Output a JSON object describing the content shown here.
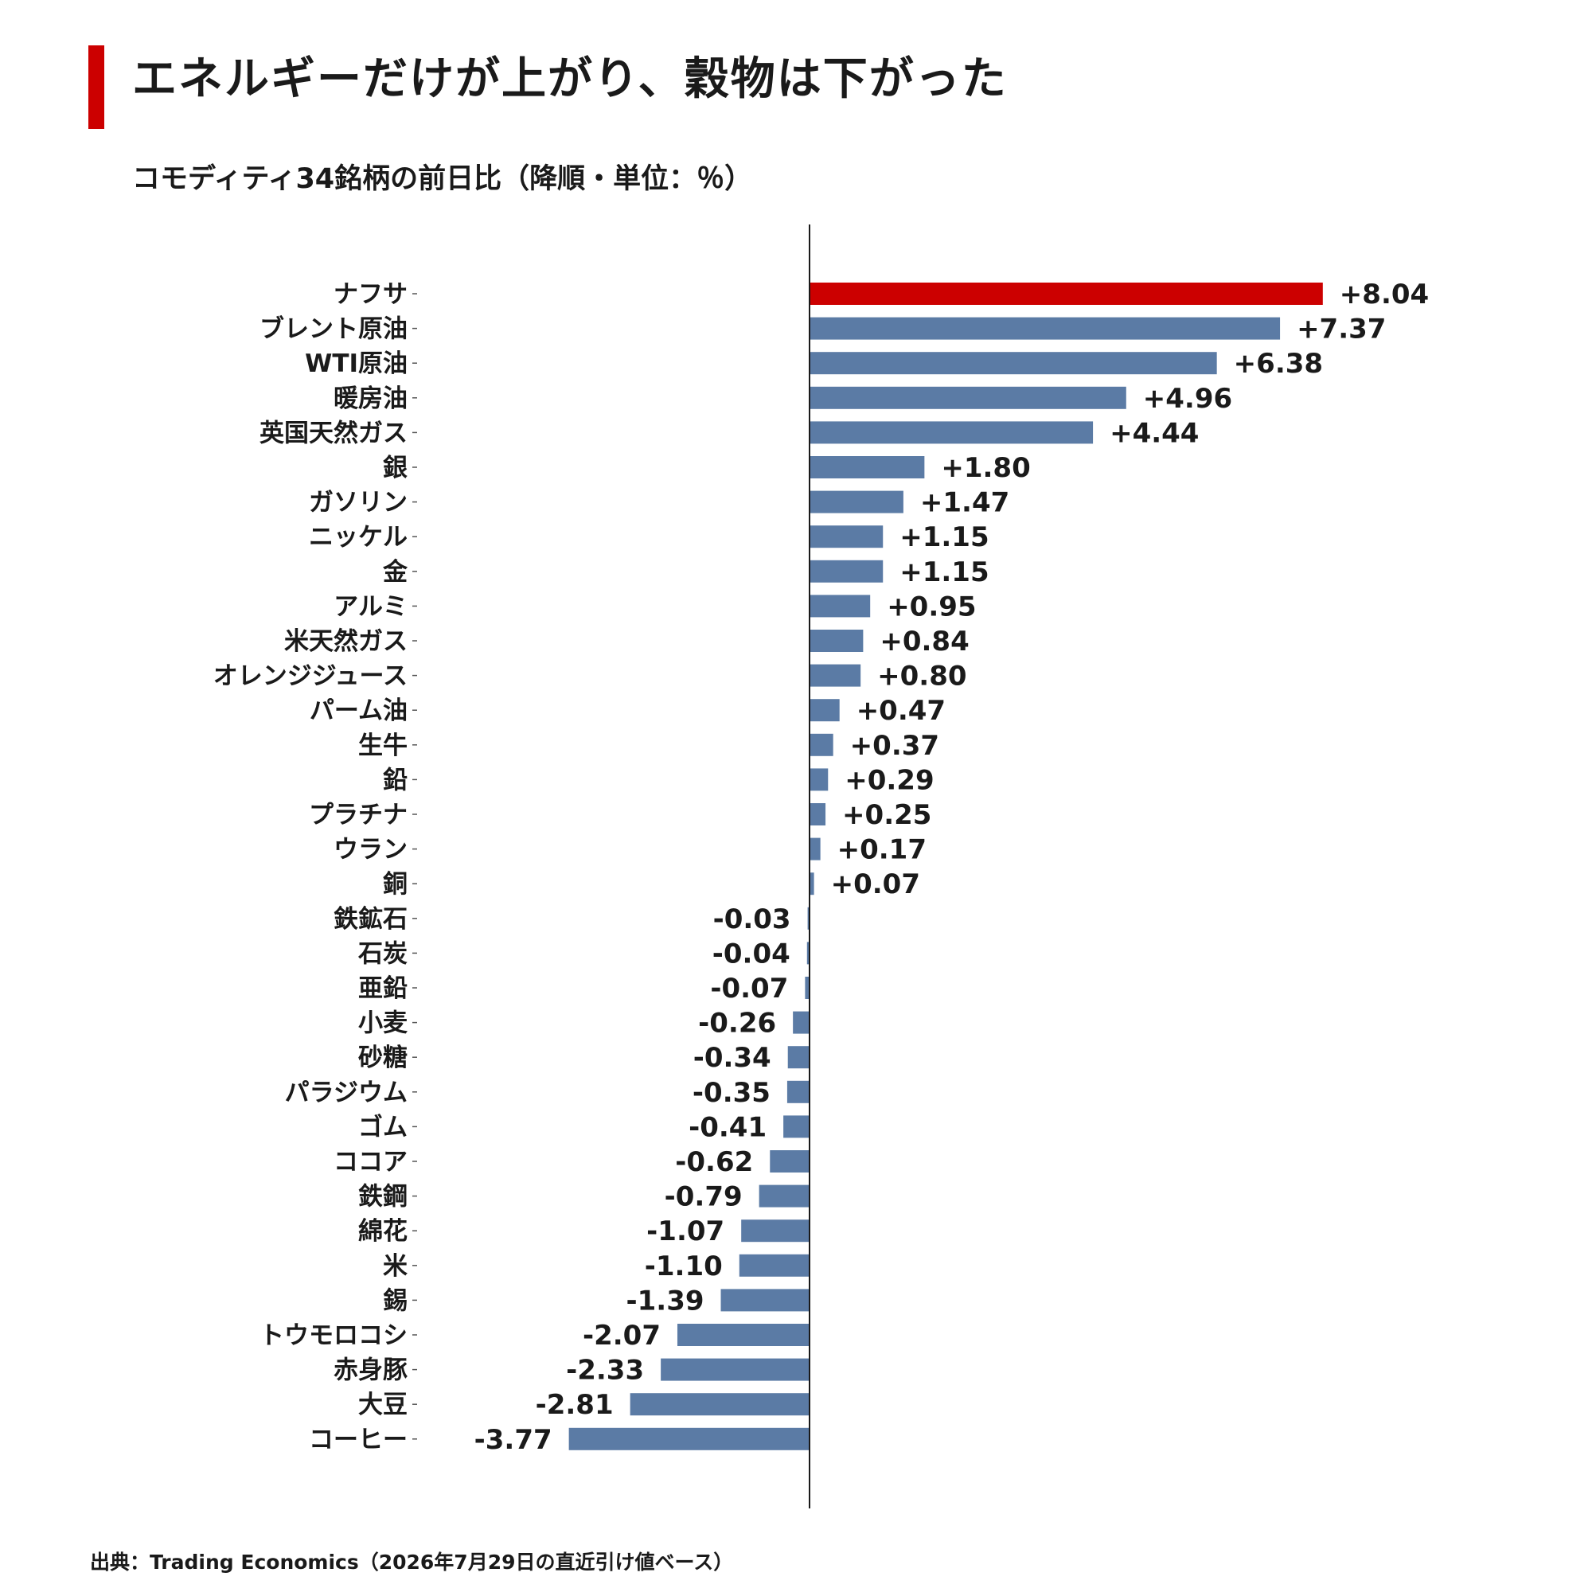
{
  "title": "エネルギーだけが上がり、穀物は下がった",
  "subtitle": "コモディティ34銘柄の前日比（降順・単位：％）",
  "source": "出典：Trading Economics（2026年7月29日の直近引け値ベース）",
  "colors": {
    "highlight": "#cc0000",
    "bar": "#5b7ba5",
    "axis": "#1a1a1a"
  },
  "chart_data": {
    "type": "bar",
    "orientation": "horizontal",
    "title": "エネルギーだけが上がり、穀物は下がった",
    "subtitle": "コモディティ34銘柄の前日比（降順・単位：％）",
    "xlabel": "",
    "ylabel": "",
    "xlim": [
      -5.0,
      11.0
    ],
    "grid": false,
    "categories": [
      "ナフサ",
      "ブレント原油",
      "WTI原油",
      "暖房油",
      "英国天然ガス",
      "銀",
      "ガソリン",
      "ニッケル",
      "金",
      "アルミ",
      "米天然ガス",
      "オレンジジュース",
      "パーム油",
      "生牛",
      "鉛",
      "プラチナ",
      "ウラン",
      "銅",
      "鉄鉱石",
      "石炭",
      "亜鉛",
      "小麦",
      "砂糖",
      "パラジウム",
      "ゴム",
      "ココア",
      "鉄鋼",
      "綿花",
      "米",
      "錫",
      "トウモロコシ",
      "赤身豚",
      "大豆",
      "コーヒー"
    ],
    "values": [
      8.04,
      7.37,
      6.38,
      4.96,
      4.44,
      1.8,
      1.47,
      1.15,
      1.15,
      0.95,
      0.84,
      0.8,
      0.47,
      0.37,
      0.29,
      0.25,
      0.17,
      0.07,
      -0.03,
      -0.04,
      -0.07,
      -0.26,
      -0.34,
      -0.35,
      -0.41,
      -0.62,
      -0.79,
      -1.07,
      -1.1,
      -1.39,
      -2.07,
      -2.33,
      -2.81,
      -3.77
    ],
    "labels": [
      "+8.04",
      "+7.37",
      "+6.38",
      "+4.96",
      "+4.44",
      "+1.80",
      "+1.47",
      "+1.15",
      "+1.15",
      "+0.95",
      "+0.84",
      "+0.80",
      "+0.47",
      "+0.37",
      "+0.29",
      "+0.25",
      "+0.17",
      "+0.07",
      "-0.03",
      "-0.04",
      "-0.07",
      "-0.26",
      "-0.34",
      "-0.35",
      "-0.41",
      "-0.62",
      "-0.79",
      "-1.07",
      "-1.10",
      "-1.39",
      "-2.07",
      "-2.33",
      "-2.81",
      "-3.77"
    ],
    "highlight_index": 0
  }
}
